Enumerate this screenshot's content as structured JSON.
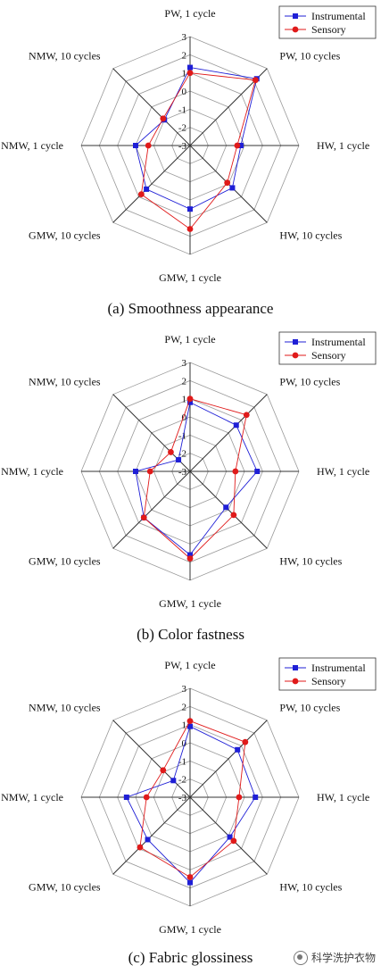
{
  "chart_data": [
    {
      "type": "radar",
      "caption": "(a) Smoothness appearance",
      "axes": [
        "PW, 1 cycle",
        "PW, 10 cycles",
        "HW, 1 cycle",
        "HW, 10 cycles",
        "GMW, 1 cycle",
        "GMW, 10 cycles",
        "NMW, 1 cycle",
        "NMW, 10 cycles"
      ],
      "scale_labels": [
        "3",
        "2",
        "1",
        "0",
        "-1",
        "-2",
        "-3"
      ],
      "rlim": [
        -3,
        3
      ],
      "legend": "top-right",
      "series": [
        {
          "name": "Instrumental",
          "color": "#1f1fd6",
          "marker": "square",
          "values": [
            1.3,
            2.2,
            -0.2,
            0.3,
            0.5,
            0.4,
            0.0,
            -1.0
          ]
        },
        {
          "name": "Sensory",
          "color": "#e01a1a",
          "marker": "circle",
          "values": [
            1.0,
            2.1,
            -0.4,
            -0.1,
            1.6,
            0.8,
            -0.7,
            -0.9
          ]
        }
      ]
    },
    {
      "type": "radar",
      "caption": "(b) Color fastness",
      "axes": [
        "PW, 1 cycle",
        "PW, 10 cycles",
        "HW, 1 cycle",
        "HW, 10 cycles",
        "GMW, 1 cycle",
        "GMW, 10 cycles",
        "NMW, 1 cycle",
        "NMW, 10 cycles"
      ],
      "scale_labels": [
        "3",
        "2",
        "1",
        "0",
        "-1",
        "-2",
        "-3"
      ],
      "rlim": [
        -3,
        3
      ],
      "legend": "top-right",
      "series": [
        {
          "name": "Instrumental",
          "color": "#1f1fd6",
          "marker": "square",
          "values": [
            0.8,
            0.6,
            0.7,
            -0.2,
            1.6,
            0.6,
            0.0,
            -2.1
          ]
        },
        {
          "name": "Sensory",
          "color": "#e01a1a",
          "marker": "circle",
          "values": [
            1.0,
            1.4,
            -0.5,
            0.4,
            1.8,
            0.6,
            -0.8,
            -1.5
          ]
        }
      ]
    },
    {
      "type": "radar",
      "caption": "(c) Fabric glossiness",
      "axes": [
        "PW, 1 cycle",
        "PW, 10 cycles",
        "HW, 1 cycle",
        "HW, 10 cycles",
        "GMW, 1 cycle",
        "GMW, 10 cycles",
        "NMW, 1 cycle",
        "NMW, 10 cycles"
      ],
      "scale_labels": [
        "3",
        "2",
        "1",
        "0",
        "-1",
        "-2",
        "-3"
      ],
      "rlim": [
        -3,
        3
      ],
      "legend": "top-right",
      "series": [
        {
          "name": "Instrumental",
          "color": "#1f1fd6",
          "marker": "square",
          "values": [
            0.9,
            0.7,
            0.6,
            0.1,
            1.7,
            0.3,
            0.5,
            -1.7
          ]
        },
        {
          "name": "Sensory",
          "color": "#e01a1a",
          "marker": "circle",
          "values": [
            1.2,
            1.3,
            -0.3,
            0.4,
            1.4,
            0.9,
            -0.6,
            -0.9
          ]
        }
      ]
    }
  ],
  "watermark": "科学洗护衣物"
}
